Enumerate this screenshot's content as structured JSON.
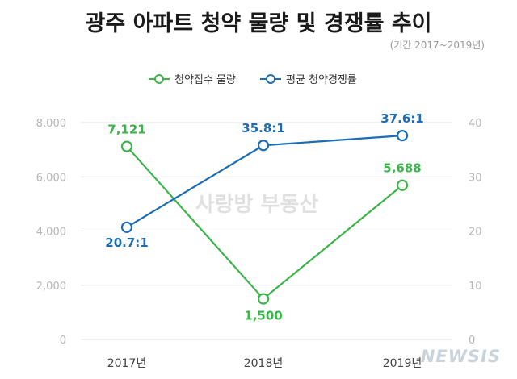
{
  "chart_data": {
    "type": "line",
    "title": "광주 아파트 청약 물량 및 경쟁률 추이",
    "subtitle": "(기간 2017~2019년)",
    "categories": [
      "2017년",
      "2018년",
      "2019년"
    ],
    "y_left": {
      "range": [
        0,
        8000
      ],
      "ticks": [
        "0",
        "2,000",
        "4,000",
        "6,000",
        "8,000"
      ],
      "tick_values": [
        0,
        2000,
        4000,
        6000,
        8000
      ]
    },
    "y_right": {
      "range": [
        0,
        40
      ],
      "ticks": [
        "0",
        "10",
        "20",
        "30",
        "40"
      ],
      "tick_values": [
        0,
        10,
        20,
        30,
        40
      ]
    },
    "grid": true,
    "legend_position": "top-center",
    "series": [
      {
        "name": "청약접수 물량",
        "axis": "left",
        "color": "#3bb44a",
        "values": [
          7121,
          1500,
          5688
        ],
        "labels": [
          "7,121",
          "1,500",
          "5,688"
        ]
      },
      {
        "name": "평균 청약경쟁률",
        "axis": "right",
        "color": "#1b6db5",
        "values": [
          20.7,
          35.8,
          37.6
        ],
        "labels": [
          "20.7:1",
          "35.8:1",
          "37.6:1"
        ]
      }
    ]
  },
  "watermark": "사랑방 부동산",
  "logo": "NEWSIS",
  "colors": {
    "grid": "#e2e2e2",
    "axis_text": "#b5b5b5",
    "category_text": "#444444",
    "title": "#1a1a1a"
  }
}
